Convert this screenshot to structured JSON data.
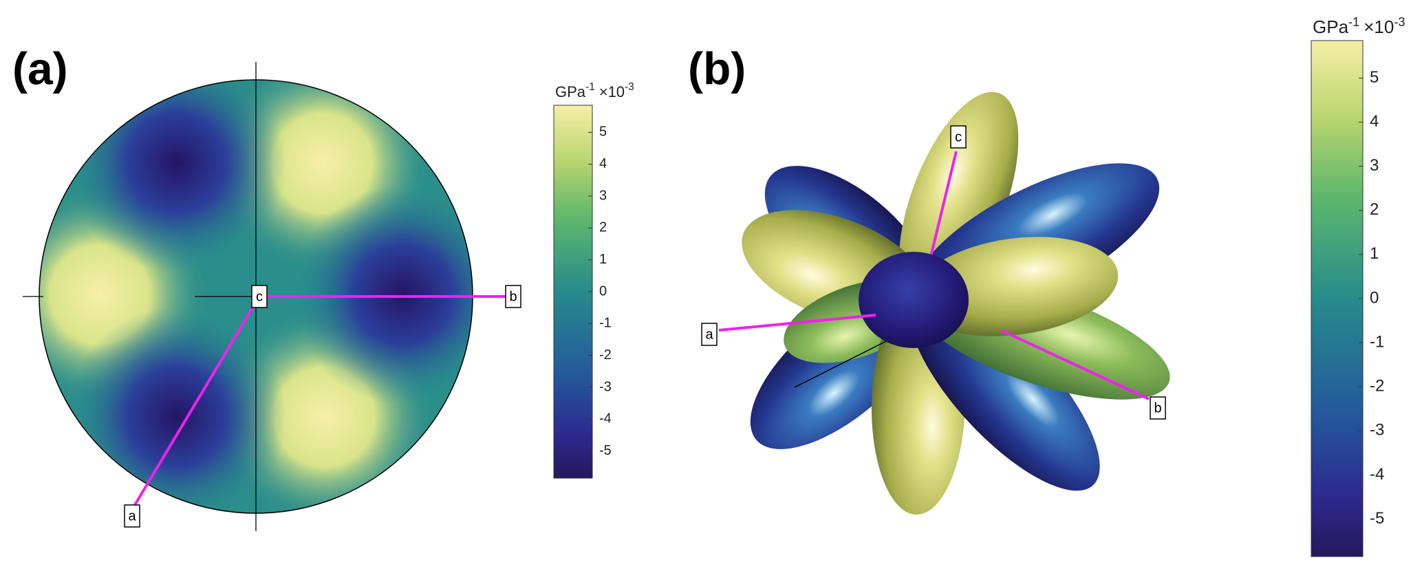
{
  "chart_data": [
    {
      "type": "pole-figure",
      "panel_label": "(a)",
      "axis_labels": [
        "a",
        "b",
        "c"
      ],
      "colorbar": {
        "unit": "GPa",
        "unit_power": "-1",
        "multiplier": "×10",
        "multiplier_power": "-3",
        "clim": [
          -5.85,
          5.85
        ],
        "ticks": [
          -5,
          -4,
          -3,
          -2,
          -1,
          0,
          1,
          2,
          3,
          4,
          5
        ]
      }
    },
    {
      "type": "surface",
      "panel_label": "(b)",
      "axis_labels": [
        "a",
        "b",
        "c"
      ],
      "colorbar": {
        "unit": "GPa",
        "unit_power": "-1",
        "multiplier": "×10",
        "multiplier_power": "-3",
        "clim": [
          -5.85,
          5.85
        ],
        "ticks": [
          -5,
          -4,
          -3,
          -2,
          -1,
          0,
          1,
          2,
          3,
          4,
          5
        ]
      }
    }
  ]
}
